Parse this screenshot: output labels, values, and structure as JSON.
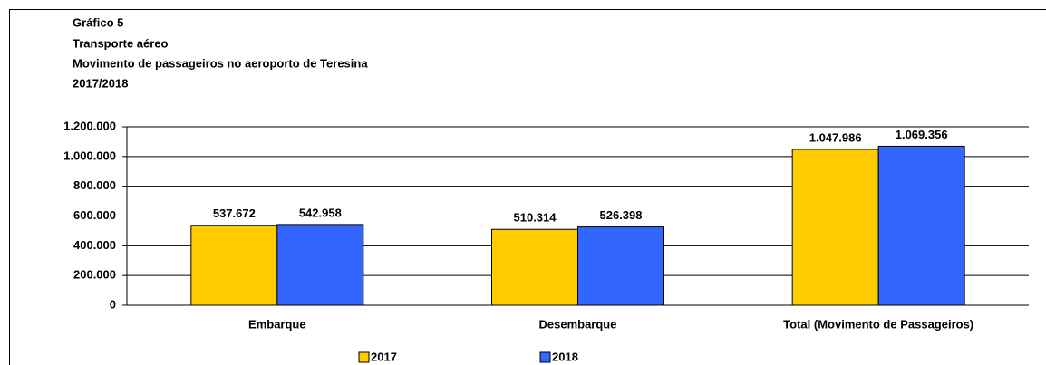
{
  "chart_data": {
    "type": "bar",
    "title": "Gráfico 5",
    "subtitle": [
      "Transporte aéreo",
      "Movimento de passageiros no aeroporto de Teresina",
      "2017/2018"
    ],
    "categories": [
      "Embarque",
      "Desembarque",
      "Total (Movimento de Passageiros)"
    ],
    "series": [
      {
        "name": "2017",
        "color": "#ffcc00",
        "values": [
          537672,
          510314,
          1047986
        ],
        "value_labels": [
          "537.672",
          "510.314",
          "1.047.986"
        ]
      },
      {
        "name": "2018",
        "color": "#3366ff",
        "values": [
          542958,
          526398,
          1069356
        ],
        "value_labels": [
          "542.958",
          "526.398",
          "1.069.356"
        ]
      }
    ],
    "ylim": [
      0,
      1200000
    ],
    "yticks": [
      0,
      {
        "value": 200000,
        "label": "200.000"
      },
      {
        "value": 400000,
        "label": "400.000"
      },
      {
        "value": 600000,
        "label": "600.000"
      },
      {
        "value": 800000,
        "label": "800.000"
      },
      {
        "value": 1000000,
        "label": "1.000.000"
      },
      {
        "value": 1200000,
        "label": "1.200.000"
      }
    ],
    "grid": true,
    "legend": "bottom"
  }
}
